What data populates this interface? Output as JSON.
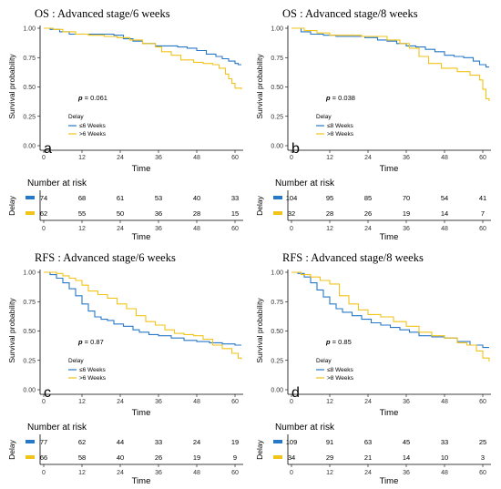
{
  "colors": {
    "short_delay": "#2878c8",
    "long_delay": "#f2c318"
  },
  "labels": {
    "ylabel": "Survival probability",
    "xlabel": "Time",
    "legend_title": "Delay",
    "risk_title": "Number at risk",
    "risk_ylabel": "Delay"
  },
  "chart_data": [
    {
      "type": "line",
      "panel": "a",
      "title": "OS : Advanced stage/6 weeks",
      "pvalue": "= 0.061",
      "xlabel": "Time",
      "ylabel": "Survival probability",
      "xlim": [
        0,
        62
      ],
      "ylim": [
        0,
        1
      ],
      "x_ticks": [
        0,
        12,
        24,
        36,
        48,
        60
      ],
      "y_ticks": [
        "0.00",
        "0.25",
        "0.50",
        "0.75",
        "1.00"
      ],
      "grid": false,
      "legend_position": "bottom-left",
      "legend_title": "Delay",
      "series": [
        {
          "name": "≤6 Weeks",
          "color": "#2878c8",
          "x": [
            0,
            2,
            5,
            8,
            12,
            17,
            22,
            25,
            28,
            31,
            35,
            39,
            42,
            45,
            48,
            51,
            54,
            56,
            58,
            60,
            61,
            62
          ],
          "y": [
            1.0,
            0.99,
            0.97,
            0.95,
            0.95,
            0.95,
            0.94,
            0.91,
            0.89,
            0.87,
            0.85,
            0.85,
            0.84,
            0.83,
            0.81,
            0.78,
            0.76,
            0.74,
            0.72,
            0.7,
            0.69,
            0.69
          ]
        },
        {
          "name": ">6 Weeks",
          "color": "#f2c318",
          "x": [
            0,
            3,
            6,
            10,
            14,
            19,
            23,
            27,
            31,
            35,
            37,
            40,
            43,
            47,
            50,
            53,
            55,
            57,
            58,
            59,
            60,
            62
          ],
          "y": [
            1.0,
            0.99,
            0.97,
            0.95,
            0.94,
            0.93,
            0.92,
            0.9,
            0.87,
            0.84,
            0.8,
            0.77,
            0.73,
            0.71,
            0.7,
            0.69,
            0.66,
            0.61,
            0.57,
            0.53,
            0.49,
            0.48
          ]
        }
      ],
      "risk_table": {
        "x": [
          0,
          12,
          24,
          36,
          48,
          60
        ],
        "rows": [
          {
            "name": "≤6 Weeks",
            "values": [
              "74",
              "68",
              "61",
              "53",
              "40",
              "33"
            ]
          },
          {
            "name": ">6 Weeks",
            "values": [
              "62",
              "55",
              "50",
              "36",
              "28",
              "15"
            ]
          }
        ]
      }
    },
    {
      "type": "line",
      "panel": "b",
      "title": "OS : Advanced stage/8 weeks",
      "pvalue": "= 0.038",
      "xlabel": "Time",
      "ylabel": "Survival probability",
      "xlim": [
        0,
        62
      ],
      "ylim": [
        0,
        1
      ],
      "x_ticks": [
        0,
        12,
        24,
        36,
        48,
        60
      ],
      "y_ticks": [
        "0.00",
        "0.25",
        "0.50",
        "0.75",
        "1.00"
      ],
      "grid": false,
      "legend_position": "bottom-left",
      "legend_title": "Delay",
      "series": [
        {
          "name": "≤8 Weeks",
          "color": "#2878c8",
          "x": [
            0,
            3,
            6,
            10,
            14,
            18,
            23,
            27,
            30,
            33,
            36,
            39,
            42,
            45,
            48,
            51,
            54,
            57,
            59,
            61,
            62
          ],
          "y": [
            1.0,
            0.97,
            0.95,
            0.94,
            0.93,
            0.93,
            0.92,
            0.9,
            0.89,
            0.87,
            0.85,
            0.84,
            0.82,
            0.8,
            0.77,
            0.76,
            0.75,
            0.72,
            0.69,
            0.67,
            0.67
          ]
        },
        {
          "name": ">8 Weeks",
          "color": "#f2c318",
          "x": [
            0,
            4,
            8,
            12,
            17,
            22,
            26,
            30,
            34,
            37,
            40,
            43,
            47,
            52,
            56,
            59,
            60,
            61,
            62
          ],
          "y": [
            1.0,
            0.98,
            0.96,
            0.94,
            0.94,
            0.93,
            0.93,
            0.9,
            0.87,
            0.83,
            0.76,
            0.7,
            0.66,
            0.63,
            0.6,
            0.56,
            0.48,
            0.4,
            0.38
          ]
        }
      ],
      "risk_table": {
        "x": [
          0,
          12,
          24,
          36,
          48,
          60
        ],
        "rows": [
          {
            "name": "≤8 Weeks",
            "values": [
              "104",
              "95",
              "85",
              "70",
              "54",
              "41"
            ]
          },
          {
            "name": ">8 Weeks",
            "values": [
              "32",
              "28",
              "26",
              "19",
              "14",
              "7"
            ]
          }
        ]
      }
    },
    {
      "type": "line",
      "panel": "c",
      "title": "RFS : Advanced stage/6 weeks",
      "pvalue": "= 0.87",
      "xlabel": "Time",
      "ylabel": "Survival probability",
      "xlim": [
        0,
        62
      ],
      "ylim": [
        0,
        1
      ],
      "x_ticks": [
        0,
        12,
        24,
        36,
        48,
        60
      ],
      "y_ticks": [
        "0.00",
        "0.25",
        "0.50",
        "0.75",
        "1.00"
      ],
      "grid": false,
      "legend_position": "bottom-left",
      "legend_title": "Delay",
      "series": [
        {
          "name": "≤6 Weeks",
          "color": "#2878c8",
          "x": [
            0,
            2,
            4,
            6,
            8,
            10,
            12,
            14,
            16,
            18,
            20,
            22,
            25,
            28,
            30,
            33,
            36,
            40,
            44,
            48,
            52,
            56,
            60,
            62
          ],
          "y": [
            1.0,
            0.98,
            0.95,
            0.91,
            0.86,
            0.8,
            0.73,
            0.67,
            0.62,
            0.6,
            0.59,
            0.56,
            0.54,
            0.51,
            0.49,
            0.47,
            0.46,
            0.44,
            0.42,
            0.41,
            0.4,
            0.39,
            0.38,
            0.38
          ]
        },
        {
          "name": ">6 Weeks",
          "color": "#f2c318",
          "x": [
            0,
            2,
            4,
            6,
            8,
            10,
            12,
            14,
            17,
            20,
            23,
            26,
            29,
            32,
            35,
            38,
            41,
            44,
            47,
            50,
            53,
            56,
            59,
            61,
            62
          ],
          "y": [
            1.0,
            1.0,
            0.99,
            0.97,
            0.95,
            0.93,
            0.89,
            0.84,
            0.81,
            0.78,
            0.73,
            0.69,
            0.63,
            0.58,
            0.55,
            0.51,
            0.48,
            0.47,
            0.46,
            0.43,
            0.38,
            0.35,
            0.31,
            0.27,
            0.26
          ]
        }
      ],
      "risk_table": {
        "x": [
          0,
          12,
          24,
          36,
          48,
          60
        ],
        "rows": [
          {
            "name": "≤6 Weeks",
            "values": [
              "77",
              "62",
              "44",
              "33",
              "24",
              "19"
            ]
          },
          {
            "name": ">6 Weeks",
            "values": [
              "66",
              "58",
              "40",
              "26",
              "19",
              "9"
            ]
          }
        ]
      }
    },
    {
      "type": "line",
      "panel": "d",
      "title": "RFS : Advanced stage/8 weeks",
      "pvalue": "= 0.85",
      "xlabel": "Time",
      "ylabel": "Survival probability",
      "xlim": [
        0,
        62
      ],
      "ylim": [
        0,
        1
      ],
      "x_ticks": [
        0,
        12,
        24,
        36,
        48,
        60
      ],
      "y_ticks": [
        "0.00",
        "0.25",
        "0.50",
        "0.75",
        "1.00"
      ],
      "grid": false,
      "legend_position": "bottom-left",
      "legend_title": "Delay",
      "series": [
        {
          "name": "≤8 Weeks",
          "color": "#2878c8",
          "x": [
            0,
            2,
            4,
            6,
            8,
            10,
            12,
            14,
            16,
            19,
            22,
            25,
            28,
            31,
            34,
            37,
            40,
            44,
            48,
            52,
            56,
            60,
            62
          ],
          "y": [
            1.0,
            0.99,
            0.96,
            0.91,
            0.85,
            0.79,
            0.73,
            0.69,
            0.66,
            0.63,
            0.6,
            0.57,
            0.55,
            0.53,
            0.51,
            0.49,
            0.46,
            0.45,
            0.44,
            0.41,
            0.38,
            0.36,
            0.36
          ]
        },
        {
          "name": ">8 Weeks",
          "color": "#f2c318",
          "x": [
            0,
            3,
            6,
            9,
            12,
            15,
            18,
            21,
            24,
            28,
            32,
            36,
            40,
            44,
            48,
            52,
            55,
            58,
            60,
            62
          ],
          "y": [
            1.0,
            0.98,
            0.96,
            0.93,
            0.9,
            0.8,
            0.73,
            0.68,
            0.64,
            0.62,
            0.58,
            0.54,
            0.49,
            0.46,
            0.44,
            0.4,
            0.38,
            0.33,
            0.27,
            0.24
          ]
        }
      ],
      "risk_table": {
        "x": [
          0,
          12,
          24,
          36,
          48,
          60
        ],
        "rows": [
          {
            "name": "≤8 Weeks",
            "values": [
              "109",
              "91",
              "63",
              "45",
              "33",
              "25"
            ]
          },
          {
            "name": ">8 Weeks",
            "values": [
              "34",
              "29",
              "21",
              "14",
              "10",
              "3"
            ]
          }
        ]
      }
    }
  ]
}
